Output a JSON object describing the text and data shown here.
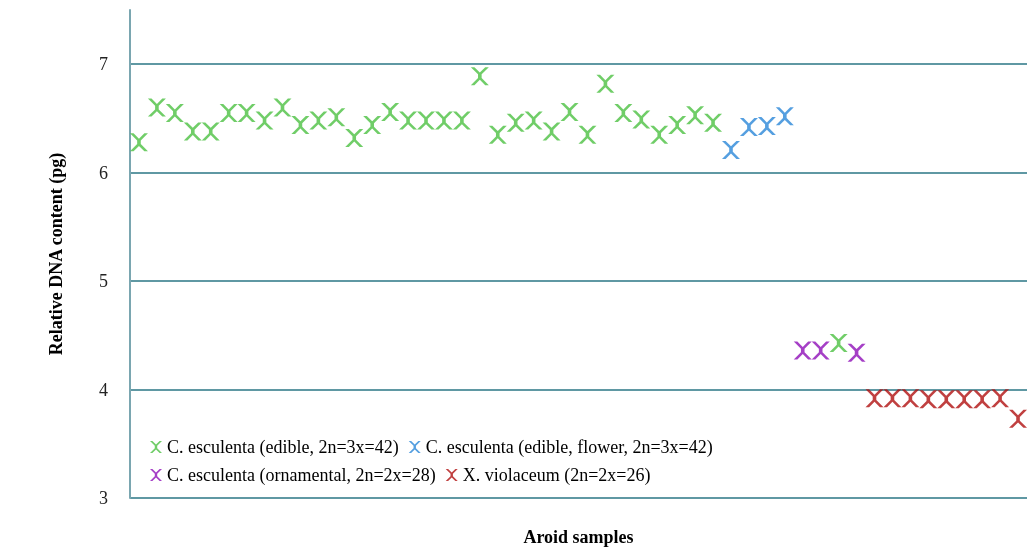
{
  "chart_data": {
    "type": "scatter",
    "xlabel": "Aroid samples",
    "ylabel": "Relative DNA content (pg)",
    "categories": [
      null,
      null,
      null,
      null,
      null,
      null,
      null,
      null,
      null,
      null,
      null,
      null,
      null,
      null,
      null,
      null,
      null,
      null,
      null,
      null,
      null,
      null,
      null,
      null,
      null,
      null,
      null,
      null,
      null,
      null,
      null,
      null,
      null,
      null,
      null,
      null,
      null,
      null,
      null,
      null,
      null,
      null,
      null,
      null,
      null,
      null,
      null,
      null,
      null,
      null
    ],
    "series": [
      {
        "name": "C. esculenta (edible, 2n=3x=42)",
        "color": "#4cc142",
        "values": [
          6.28,
          6.6,
          6.55,
          6.38,
          6.38,
          6.55,
          6.55,
          6.48,
          6.6,
          6.44,
          6.48,
          6.51,
          6.32,
          6.44,
          6.56,
          6.48,
          6.48,
          6.48,
          6.48,
          6.89,
          6.35,
          6.46,
          6.48,
          6.38,
          6.56,
          6.35,
          6.82,
          6.55,
          6.49,
          6.35,
          6.44,
          6.53,
          6.46,
          null,
          null,
          null,
          null,
          null,
          null,
          4.43,
          null,
          null,
          null,
          null,
          null,
          null,
          null,
          null,
          null,
          null
        ]
      },
      {
        "name": "C. esculenta (edible, flower, 2n=3x=42)",
        "color": "#2b87d8",
        "values": [
          null,
          null,
          null,
          null,
          null,
          null,
          null,
          null,
          null,
          null,
          null,
          null,
          null,
          null,
          null,
          null,
          null,
          null,
          null,
          null,
          null,
          null,
          null,
          null,
          null,
          null,
          null,
          null,
          null,
          null,
          null,
          null,
          null,
          6.21,
          6.42,
          6.43,
          6.52,
          null,
          null,
          null,
          null,
          null,
          null,
          null,
          null,
          null,
          null,
          null,
          null,
          null
        ]
      },
      {
        "name": "C. esculenta (ornamental, 2n=2x=28)",
        "color": "#8e0fb8",
        "values": [
          null,
          null,
          null,
          null,
          null,
          null,
          null,
          null,
          null,
          null,
          null,
          null,
          null,
          null,
          null,
          null,
          null,
          null,
          null,
          null,
          null,
          null,
          null,
          null,
          null,
          null,
          null,
          null,
          null,
          null,
          null,
          null,
          null,
          null,
          null,
          null,
          null,
          4.36,
          4.36,
          null,
          4.34,
          null,
          null,
          null,
          null,
          null,
          null,
          null,
          null,
          null
        ]
      },
      {
        "name": "X. violaceum (2n=2x=26)",
        "color": "#b01010",
        "values": [
          null,
          null,
          null,
          null,
          null,
          null,
          null,
          null,
          null,
          null,
          null,
          null,
          null,
          null,
          null,
          null,
          null,
          null,
          null,
          null,
          null,
          null,
          null,
          null,
          null,
          null,
          null,
          null,
          null,
          null,
          null,
          null,
          null,
          null,
          null,
          null,
          null,
          null,
          null,
          null,
          null,
          3.92,
          3.92,
          3.92,
          3.91,
          3.91,
          3.91,
          3.91,
          3.92,
          3.73
        ]
      }
    ],
    "ylim": [
      3,
      7.5
    ],
    "yticks": [
      3,
      4,
      5,
      6,
      7
    ],
    "grid": "y",
    "legend": "bottom left",
    "marker": "cross"
  }
}
